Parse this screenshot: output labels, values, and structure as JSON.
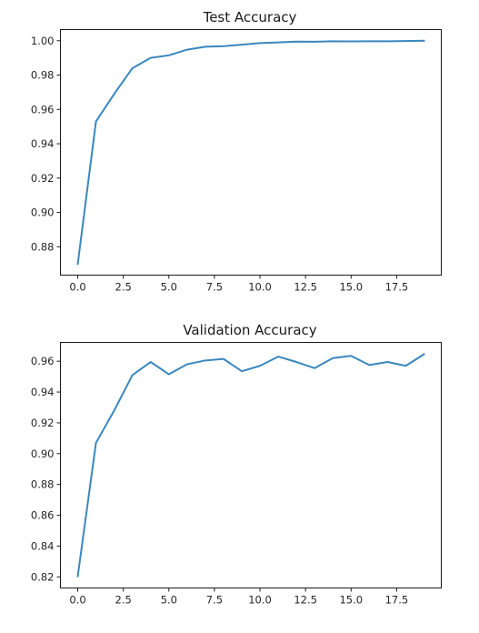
{
  "chart_data": [
    {
      "type": "line",
      "title": "Test Accuracy",
      "xlabel": "",
      "ylabel": "",
      "xlim": [
        -0.95,
        19.95
      ],
      "ylim": [
        0.8635,
        1.0065
      ],
      "xticks": [
        "0.0",
        "2.5",
        "5.0",
        "7.5",
        "10.0",
        "12.5",
        "15.0",
        "17.5"
      ],
      "yticks": [
        "0.88",
        "0.90",
        "0.92",
        "0.94",
        "0.96",
        "0.98",
        "1.00"
      ],
      "grid": false,
      "series": [
        {
          "color": "#3a87be",
          "x": [
            0,
            1,
            2,
            3,
            4,
            5,
            6,
            7,
            8,
            9,
            10,
            11,
            12,
            13,
            14,
            15,
            16,
            17,
            18,
            19
          ],
          "y": [
            0.87,
            0.953,
            0.969,
            0.984,
            0.99,
            0.9915,
            0.9948,
            0.9965,
            0.9968,
            0.9977,
            0.9986,
            0.999,
            0.9995,
            0.9994,
            0.9997,
            0.9996,
            0.9997,
            0.9997,
            0.9998,
            1.0
          ]
        }
      ]
    },
    {
      "type": "line",
      "title": "Validation Accuracy",
      "xlabel": "",
      "ylabel": "",
      "xlim": [
        -0.95,
        19.95
      ],
      "ylim": [
        0.8128,
        0.9722
      ],
      "xticks": [
        "0.0",
        "2.5",
        "5.0",
        "7.5",
        "10.0",
        "12.5",
        "15.0",
        "17.5"
      ],
      "yticks": [
        "0.82",
        "0.84",
        "0.86",
        "0.88",
        "0.90",
        "0.92",
        "0.94",
        "0.96"
      ],
      "grid": false,
      "series": [
        {
          "color": "#3a87be",
          "x": [
            0,
            1,
            2,
            3,
            4,
            5,
            6,
            7,
            8,
            9,
            10,
            11,
            12,
            13,
            14,
            15,
            16,
            17,
            18,
            19
          ],
          "y": [
            0.8205,
            0.907,
            0.928,
            0.951,
            0.9595,
            0.9515,
            0.958,
            0.9605,
            0.9615,
            0.9535,
            0.957,
            0.963,
            0.9595,
            0.9555,
            0.962,
            0.9635,
            0.9575,
            0.9595,
            0.957,
            0.9645
          ]
        }
      ]
    }
  ]
}
